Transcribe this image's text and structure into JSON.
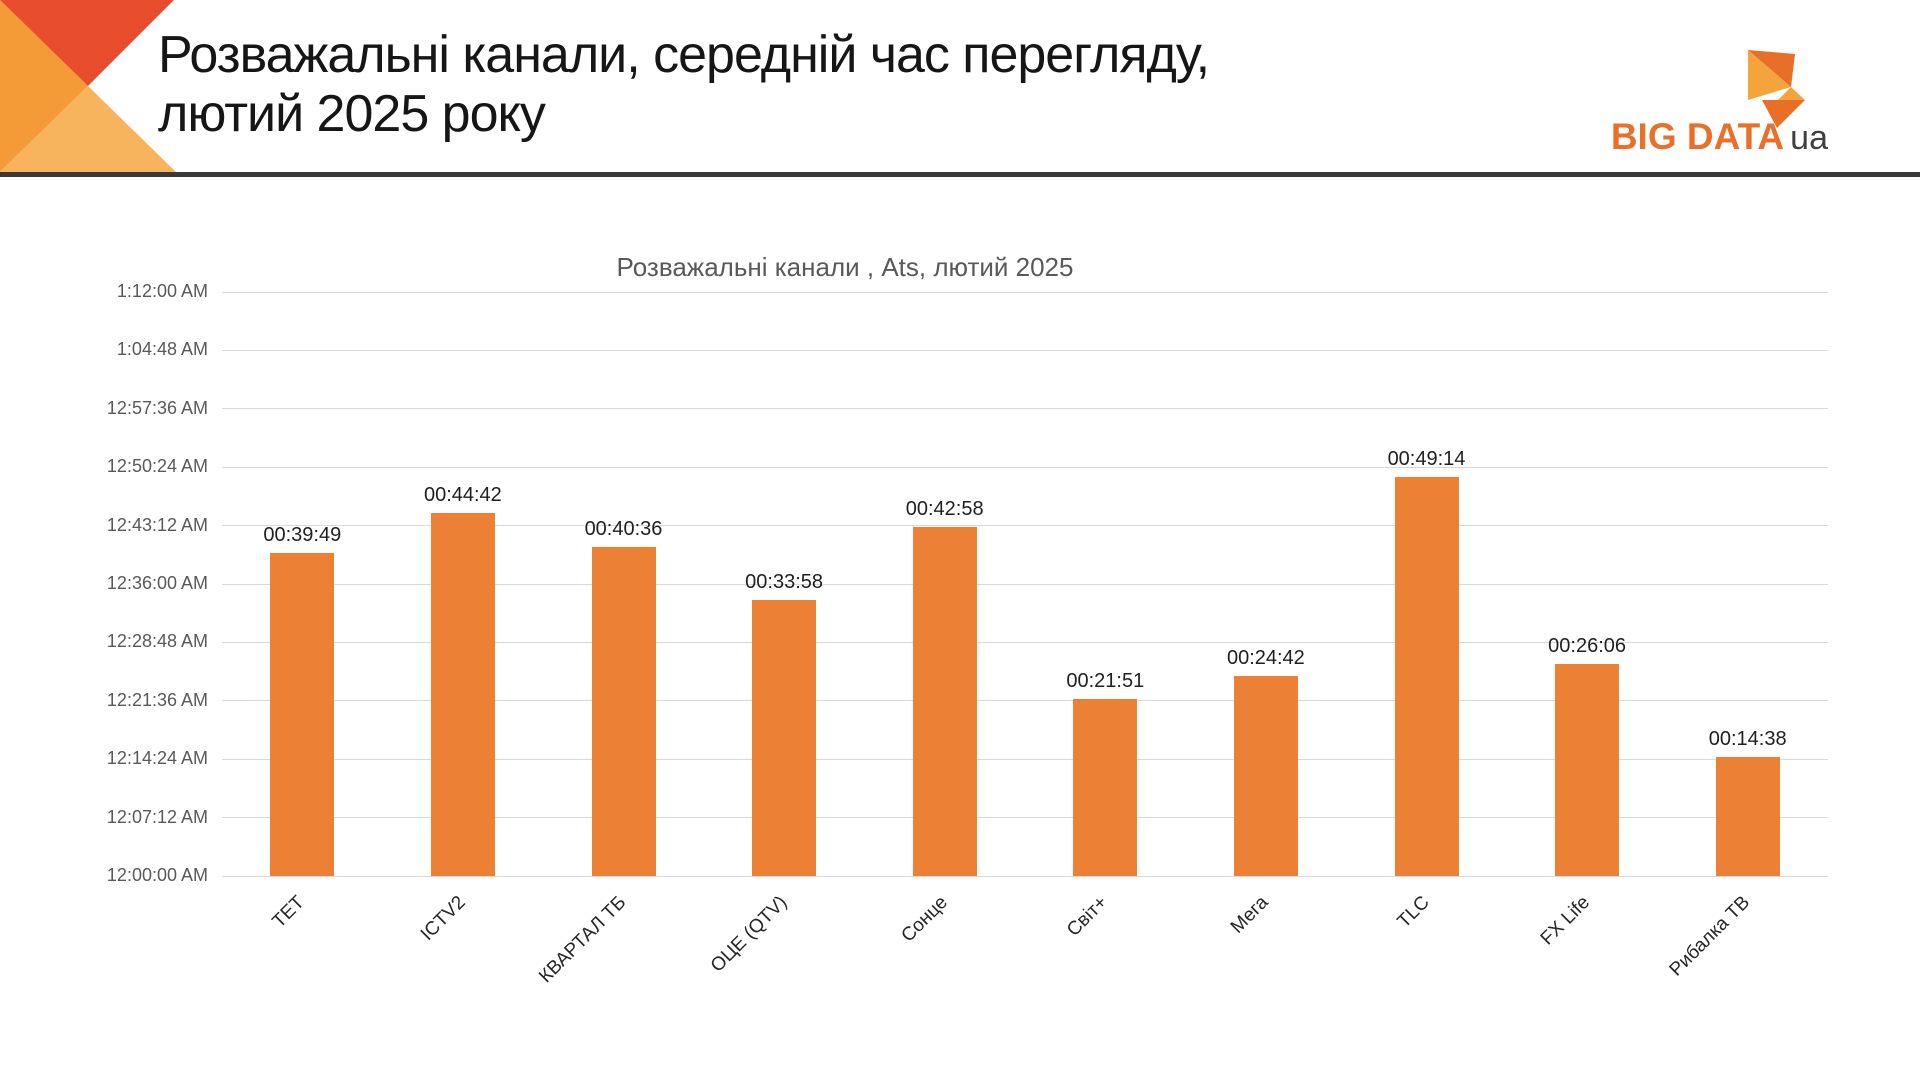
{
  "header": {
    "title_line1": "Розважальні канали, середній час перегляду,",
    "title_line2": "лютий 2025 року",
    "logo": {
      "brand": "BIG DATA",
      "suffix": "ua"
    },
    "colors": {
      "deco_red": "#e84e2e",
      "deco_orange": "#f49b38",
      "deco_amber": "#f8b45c",
      "divider": "#3b3838",
      "logo_dark_orange": "#e86f28",
      "logo_amber": "#f5a43c"
    }
  },
  "chart_data": {
    "type": "bar",
    "title": "Розважальні канали , Ats, лютий 2025",
    "series_name": "Ats",
    "categories": [
      "ТЕТ",
      "ICTV2",
      "КВАРТАЛ ТБ",
      "ОЦЕ (QTV)",
      "Сонце",
      "Світ+",
      "Мега",
      "TLC",
      "FX Life",
      "Рибалка ТВ"
    ],
    "value_labels": [
      "00:39:49",
      "00:44:42",
      "00:40:36",
      "00:33:58",
      "00:42:58",
      "00:21:51",
      "00:24:42",
      "00:49:14",
      "00:26:06",
      "00:14:38"
    ],
    "values_seconds": [
      2389,
      2682,
      2436,
      2038,
      2578,
      1311,
      1482,
      2954,
      1566,
      878
    ],
    "y_ticks": [
      "12:00:00 AM",
      "12:07:12 AM",
      "12:14:24 AM",
      "12:21:36 AM",
      "12:28:48 AM",
      "12:36:00 AM",
      "12:43:12 AM",
      "12:50:24 AM",
      "12:57:36 AM",
      "1:04:48 AM",
      "1:12:00 AM"
    ],
    "y_axis_max_seconds": 4320,
    "y_tick_step_seconds": 432,
    "ylim": [
      "12:00:00 AM",
      "1:12:00 AM"
    ],
    "grid": true,
    "legend": "none",
    "colors": {
      "bar": "#ec8035",
      "gridline": "#d9d9d9",
      "axis_text": "#595959",
      "value_label_text": "#1f1f1f",
      "title_text": "#595959"
    }
  }
}
